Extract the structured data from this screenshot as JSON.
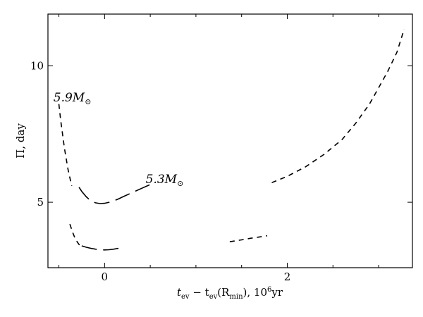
{
  "chart_data": {
    "type": "line",
    "title": "",
    "xlabel": "t_ev − t_ev(R_min), 10⁶yr",
    "xlabel_parts": {
      "t1": "t",
      "sub1": "ev",
      "mid": " − t",
      "sub2": "ev",
      "paren_open": "(R",
      "sub3": "min",
      "tail": "), 10",
      "sup": "6",
      "unit": "yr"
    },
    "ylabel": "Π, day",
    "xlim": [
      -0.62,
      3.37
    ],
    "ylim": [
      2.6,
      11.9
    ],
    "xticks": [
      0,
      2
    ],
    "xticks_minor": [
      -0.5,
      0.5,
      1,
      1.5,
      2.5,
      3
    ],
    "yticks": [
      5,
      10
    ],
    "xtick_labels": [
      "0",
      "2"
    ],
    "ytick_labels": [
      "5",
      "10"
    ],
    "grid": false,
    "annotations": [
      {
        "text": "5.9M⊙",
        "base": "5.9M",
        "sym": "⊙",
        "x": -0.56,
        "y": 8.7
      },
      {
        "text": "5.3M⊙",
        "base": "5.3M",
        "sym": "⊙",
        "x": 0.45,
        "y": 5.7
      }
    ],
    "series": [
      {
        "style": "dashed",
        "x": [
          -0.5,
          -0.48,
          -0.46,
          -0.44,
          -0.42,
          -0.4,
          -0.38,
          -0.36
        ],
        "y": [
          8.6,
          8.0,
          7.5,
          7.0,
          6.6,
          6.2,
          5.9,
          5.6
        ]
      },
      {
        "style": "longdash",
        "x": [
          -0.28,
          -0.25,
          -0.2,
          -0.15,
          -0.1,
          -0.05,
          0.0,
          0.05,
          0.1,
          0.15,
          0.2,
          0.3,
          0.4,
          0.5
        ],
        "y": [
          5.55,
          5.4,
          5.2,
          5.05,
          4.98,
          4.95,
          4.96,
          5.0,
          5.05,
          5.12,
          5.2,
          5.35,
          5.5,
          5.65
        ]
      },
      {
        "style": "dashed",
        "x": [
          -0.38,
          -0.35,
          -0.32,
          -0.28,
          -0.25
        ],
        "y": [
          4.2,
          3.9,
          3.65,
          3.45,
          3.4
        ]
      },
      {
        "style": "longdash",
        "x": [
          -0.25,
          -0.2,
          -0.15,
          -0.1,
          -0.05,
          0.0,
          0.05,
          0.1,
          0.15,
          0.2
        ],
        "y": [
          3.4,
          3.35,
          3.31,
          3.28,
          3.26,
          3.25,
          3.26,
          3.28,
          3.31,
          3.35
        ]
      },
      {
        "style": "dashed",
        "x": [
          1.37,
          1.5,
          1.6,
          1.7,
          1.78
        ],
        "y": [
          3.55,
          3.62,
          3.68,
          3.73,
          3.77
        ]
      },
      {
        "style": "dashed",
        "x": [
          1.83,
          2.0,
          2.2,
          2.4,
          2.6,
          2.75,
          2.9,
          3.0,
          3.1,
          3.2,
          3.28
        ],
        "y": [
          5.72,
          5.95,
          6.3,
          6.75,
          7.3,
          7.9,
          8.6,
          9.2,
          9.8,
          10.5,
          11.35
        ]
      }
    ]
  }
}
